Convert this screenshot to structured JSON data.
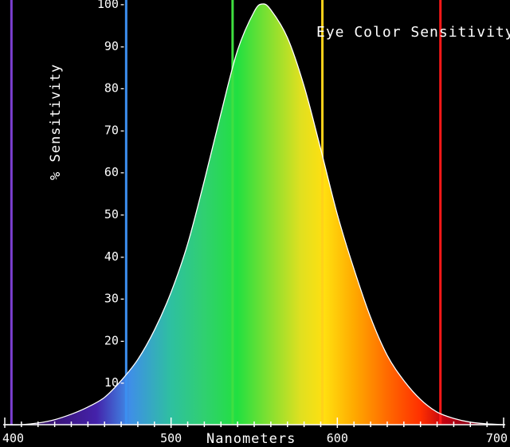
{
  "chart_data": {
    "type": "area",
    "title": "Eye Color Sensitivity",
    "xlabel": "Nanometers",
    "ylabel": "% Sensitivity",
    "xlim": [
      400,
      700
    ],
    "ylim": [
      0,
      100
    ],
    "x_ticks": [
      "400",
      "500",
      "600",
      "700"
    ],
    "y_ticks": [
      "10-",
      "20-",
      "30-",
      "40-",
      "50-",
      "60-",
      "70-",
      "80-",
      "90-",
      "100-"
    ],
    "curve": {
      "x": [
        400,
        410,
        420,
        430,
        440,
        450,
        460,
        470,
        480,
        490,
        500,
        510,
        520,
        530,
        540,
        550,
        555,
        560,
        570,
        580,
        590,
        600,
        610,
        620,
        630,
        640,
        650,
        660,
        670,
        680,
        690,
        700
      ],
      "y": [
        0.0,
        0.0,
        0.4,
        1.2,
        2.5,
        4.2,
        6.5,
        10.5,
        15.5,
        22.5,
        31.5,
        43.0,
        58.0,
        74.0,
        89.0,
        98.2,
        100.0,
        98.6,
        92.0,
        80.5,
        65.5,
        50.0,
        37.0,
        25.5,
        16.5,
        10.5,
        6.0,
        3.0,
        1.5,
        0.6,
        0.2,
        0.0
      ]
    },
    "reference_lines": [
      {
        "x": 404,
        "color": "#7b3fd0"
      },
      {
        "x": 473,
        "color": "#3c8ff0"
      },
      {
        "x": 537,
        "color": "#3fe040"
      },
      {
        "x": 591,
        "color": "#ffd21a"
      },
      {
        "x": 662,
        "color": "#ff1818"
      }
    ],
    "gradient_colors": [
      {
        "x": 400,
        "color": "#1a0a2a"
      },
      {
        "x": 430,
        "color": "#3a1478"
      },
      {
        "x": 455,
        "color": "#4422aa"
      },
      {
        "x": 475,
        "color": "#3f8ee8"
      },
      {
        "x": 500,
        "color": "#2ec0a0"
      },
      {
        "x": 520,
        "color": "#30d070"
      },
      {
        "x": 540,
        "color": "#22e040"
      },
      {
        "x": 560,
        "color": "#88e030"
      },
      {
        "x": 578,
        "color": "#e0e020"
      },
      {
        "x": 592,
        "color": "#ffe010"
      },
      {
        "x": 610,
        "color": "#ffaa00"
      },
      {
        "x": 630,
        "color": "#ff6a00"
      },
      {
        "x": 650,
        "color": "#ff3000"
      },
      {
        "x": 665,
        "color": "#c00010"
      },
      {
        "x": 680,
        "color": "#8a0018"
      },
      {
        "x": 700,
        "color": "#4a0010"
      }
    ],
    "grid": false,
    "colors": {
      "background": "#000000",
      "text": "#ffffff",
      "axis": "#ffffff",
      "curve_outline": "#ffffff"
    }
  }
}
